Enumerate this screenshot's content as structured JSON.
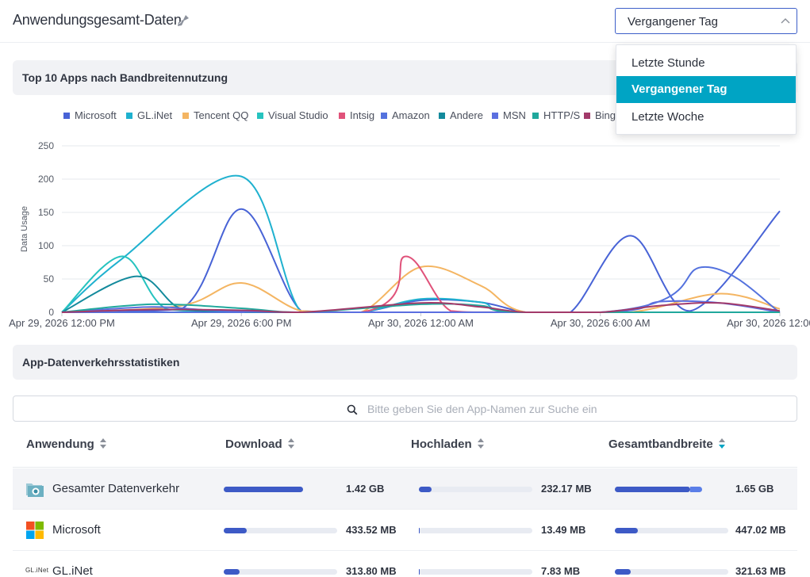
{
  "header": {
    "title": "Anwendungsgesamt-Daten",
    "title_icon": "broom-icon",
    "time_range": {
      "selected": "Vergangener Tag",
      "options": [
        "Letzte Stunde",
        "Vergangener Tag",
        "Letzte Woche"
      ]
    }
  },
  "chart_section": {
    "title": "Top 10 Apps nach Bandbreitennutzung"
  },
  "legend": [
    {
      "label": "Microsoft",
      "color": "#4863d6"
    },
    {
      "label": "GL.iNet",
      "color": "#1fb1cf"
    },
    {
      "label": "Tencent QQ",
      "color": "#f4b562"
    },
    {
      "label": "Visual Studio",
      "color": "#26c3bf"
    },
    {
      "label": "Intsig",
      "color": "#e0527a"
    },
    {
      "label": "Amazon",
      "color": "#5472de"
    },
    {
      "label": "Andere",
      "color": "#138a9c"
    },
    {
      "label": "MSN",
      "color": "#5b6fe0"
    },
    {
      "label": "HTTP/S",
      "color": "#20a89c"
    },
    {
      "label": "Bing",
      "color": "#a23a6a"
    }
  ],
  "chart_data": {
    "type": "line",
    "ylabel": "Data Usage",
    "ylim": [
      0,
      250
    ],
    "yticks": [
      0,
      50,
      100,
      150,
      200,
      250
    ],
    "xlim": [
      "Apr 29, 2026 12:00 PM",
      "Apr 30, 2026 12:00 PM"
    ],
    "xticks": [
      "Apr 29, 2026 12:00 PM",
      "Apr 29, 2026 6:00 PM",
      "Apr 30, 2026 12:00 AM",
      "Apr 30, 2026 6:00 AM",
      "Apr 30, 2026 12:00 PM"
    ],
    "grid": true,
    "series": [
      {
        "name": "Microsoft",
        "color": "#4863d6",
        "points": [
          [
            "Apr 29, 2026 12:00 PM",
            0
          ],
          [
            "Apr 29, 2026 4:00 PM",
            5
          ],
          [
            "Apr 29, 2026 6:00 PM",
            155
          ],
          [
            "Apr 29, 2026 8:00 PM",
            2
          ],
          [
            "Apr 29, 2026 10:00 PM",
            0
          ],
          [
            "Apr 30, 2026 12:00 AM",
            18
          ],
          [
            "Apr 30, 2026 2:00 AM",
            15
          ],
          [
            "Apr 30, 2026 3:30 AM",
            0
          ],
          [
            "Apr 30, 2026 5:00 AM",
            0
          ],
          [
            "Apr 30, 2026 7:00 AM",
            115
          ],
          [
            "Apr 30, 2026 9:00 AM",
            2
          ],
          [
            "Apr 30, 2026 12:00 PM",
            152
          ]
        ]
      },
      {
        "name": "GL.iNet",
        "color": "#1fb1cf",
        "points": [
          [
            "Apr 29, 2026 12:00 PM",
            0
          ],
          [
            "Apr 29, 2026 2:00 PM",
            80
          ],
          [
            "Apr 29, 2026 6:00 PM",
            204
          ],
          [
            "Apr 29, 2026 8:00 PM",
            0
          ],
          [
            "Apr 29, 2026 10:00 PM",
            0
          ],
          [
            "Apr 30, 2026 12:00 AM",
            20
          ],
          [
            "Apr 30, 2026 2:00 AM",
            15
          ],
          [
            "Apr 30, 2026 3:30 AM",
            0
          ],
          [
            "Apr 30, 2026 12:00 PM",
            0
          ]
        ]
      },
      {
        "name": "Tencent QQ",
        "color": "#f4b562",
        "points": [
          [
            "Apr 29, 2026 12:00 PM",
            0
          ],
          [
            "Apr 29, 2026 4:00 PM",
            10
          ],
          [
            "Apr 29, 2026 6:00 PM",
            44
          ],
          [
            "Apr 29, 2026 8:00 PM",
            2
          ],
          [
            "Apr 29, 2026 10:00 PM",
            0
          ],
          [
            "Apr 30, 2026 12:00 AM",
            68
          ],
          [
            "Apr 30, 2026 2:00 AM",
            40
          ],
          [
            "Apr 30, 2026 3:30 AM",
            0
          ],
          [
            "Apr 30, 2026 7:00 AM",
            0
          ],
          [
            "Apr 30, 2026 10:00 AM",
            28
          ],
          [
            "Apr 30, 2026 12:00 PM",
            5
          ]
        ]
      },
      {
        "name": "Visual Studio",
        "color": "#26c3bf",
        "points": [
          [
            "Apr 29, 2026 12:00 PM",
            0
          ],
          [
            "Apr 29, 2026 2:00 PM",
            84
          ],
          [
            "Apr 29, 2026 3:30 PM",
            5
          ],
          [
            "Apr 29, 2026 6:00 PM",
            2
          ],
          [
            "Apr 29, 2026 8:00 PM",
            0
          ],
          [
            "Apr 30, 2026 12:00 PM",
            0
          ]
        ]
      },
      {
        "name": "Intsig",
        "color": "#e0527a",
        "points": [
          [
            "Apr 29, 2026 12:00 PM",
            0
          ],
          [
            "Apr 29, 2026 10:00 PM",
            0
          ],
          [
            "Apr 29, 2026 11:30 PM",
            84
          ],
          [
            "Apr 30, 2026 1:00 AM",
            2
          ],
          [
            "Apr 30, 2026 3:00 AM",
            0
          ],
          [
            "Apr 30, 2026 12:00 PM",
            0
          ]
        ]
      },
      {
        "name": "Amazon",
        "color": "#5472de",
        "points": [
          [
            "Apr 29, 2026 12:00 PM",
            0
          ],
          [
            "Apr 30, 2026 6:00 AM",
            0
          ],
          [
            "Apr 30, 2026 9:30 AM",
            68
          ],
          [
            "Apr 30, 2026 12:00 PM",
            0
          ]
        ]
      },
      {
        "name": "Andere",
        "color": "#138a9c",
        "points": [
          [
            "Apr 29, 2026 12:00 PM",
            0
          ],
          [
            "Apr 29, 2026 2:30 PM",
            54
          ],
          [
            "Apr 29, 2026 4:00 PM",
            5
          ],
          [
            "Apr 29, 2026 6:00 PM",
            2
          ],
          [
            "Apr 29, 2026 8:00 PM",
            0
          ],
          [
            "Apr 30, 2026 12:00 PM",
            0
          ]
        ]
      },
      {
        "name": "MSN",
        "color": "#5b6fe0",
        "points": [
          [
            "Apr 29, 2026 12:00 PM",
            0
          ],
          [
            "Apr 29, 2026 3:00 PM",
            8
          ],
          [
            "Apr 29, 2026 5:00 PM",
            3
          ],
          [
            "Apr 29, 2026 8:00 PM",
            0
          ],
          [
            "Apr 30, 2026 6:00 AM",
            0
          ],
          [
            "Apr 30, 2026 8:00 AM",
            16
          ],
          [
            "Apr 30, 2026 10:00 AM",
            14
          ],
          [
            "Apr 30, 2026 12:00 PM",
            0
          ]
        ]
      },
      {
        "name": "HTTP/S",
        "color": "#20a89c",
        "points": [
          [
            "Apr 29, 2026 12:00 PM",
            0
          ],
          [
            "Apr 29, 2026 3:00 PM",
            12
          ],
          [
            "Apr 29, 2026 6:00 PM",
            6
          ],
          [
            "Apr 29, 2026 8:00 PM",
            0
          ],
          [
            "Apr 30, 2026 12:00 AM",
            12
          ],
          [
            "Apr 30, 2026 2:00 AM",
            10
          ],
          [
            "Apr 30, 2026 3:30 AM",
            0
          ],
          [
            "Apr 30, 2026 12:00 PM",
            0
          ]
        ]
      },
      {
        "name": "Bing",
        "color": "#a23a6a",
        "points": [
          [
            "Apr 29, 2026 12:00 PM",
            0
          ],
          [
            "Apr 29, 2026 3:00 PM",
            4
          ],
          [
            "Apr 29, 2026 6:00 PM",
            3
          ],
          [
            "Apr 29, 2026 8:00 PM",
            0
          ],
          [
            "Apr 30, 2026 12:00 AM",
            14
          ],
          [
            "Apr 30, 2026 2:00 AM",
            8
          ],
          [
            "Apr 30, 2026 3:30 AM",
            0
          ],
          [
            "Apr 30, 2026 6:00 AM",
            0
          ],
          [
            "Apr 30, 2026 8:00 AM",
            10
          ],
          [
            "Apr 30, 2026 10:00 AM",
            14
          ],
          [
            "Apr 30, 2026 12:00 PM",
            2
          ]
        ]
      }
    ]
  },
  "stats_section": {
    "title": "App-Datenverkehrsstatistiken",
    "search_placeholder": "Bitte geben Sie den App-Namen zur Suche ein",
    "columns": [
      "Anwendung",
      "Download",
      "Hochladen",
      "Gesamtbandbreite"
    ],
    "sorted_column": "Gesamtbandbreite",
    "rows": [
      {
        "name": "Gesamter Datenverkehr",
        "icon": "folder-network-icon",
        "download": "1.42 GB",
        "download_pct": 1.0,
        "upload": "232.17 MB",
        "upload_pct": 0.11,
        "total": "1.65 GB",
        "total_pct": 0.86,
        "total_pct_secondary": 0.14
      },
      {
        "name": "Microsoft",
        "icon": "microsoft-logo-icon",
        "download": "433.52 MB",
        "download_pct": 0.2,
        "upload": "13.49 MB",
        "upload_pct": 0.01,
        "total": "447.02 MB",
        "total_pct": 0.2
      },
      {
        "name": "GL.iNet",
        "icon": "glinet-logo-icon",
        "download": "313.80 MB",
        "download_pct": 0.14,
        "upload": "7.83 MB",
        "upload_pct": 0.01,
        "total": "321.63 MB",
        "total_pct": 0.14
      }
    ]
  }
}
